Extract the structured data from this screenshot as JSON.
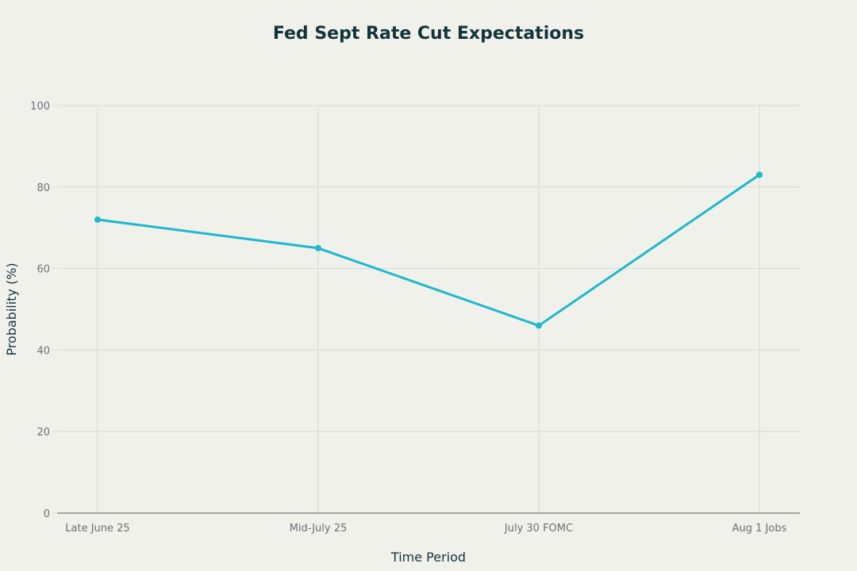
{
  "chart_data": {
    "type": "line",
    "title": "Fed Sept Rate Cut Expectations",
    "xlabel": "Time Period",
    "ylabel": "Probability (%)",
    "categories": [
      "Late June 25",
      "Mid-July 25",
      "July 30 FOMC",
      "Aug 1 Jobs"
    ],
    "values": [
      72,
      65,
      46,
      83
    ],
    "ylim": [
      0,
      100
    ],
    "yticks": [
      0,
      20,
      40,
      60,
      80,
      100
    ],
    "grid": true,
    "markers": true,
    "colors": {
      "line": "#1fb8cd",
      "background": "#f1f1ec",
      "grid": "#d9d9d4",
      "text": "#13343b"
    }
  }
}
